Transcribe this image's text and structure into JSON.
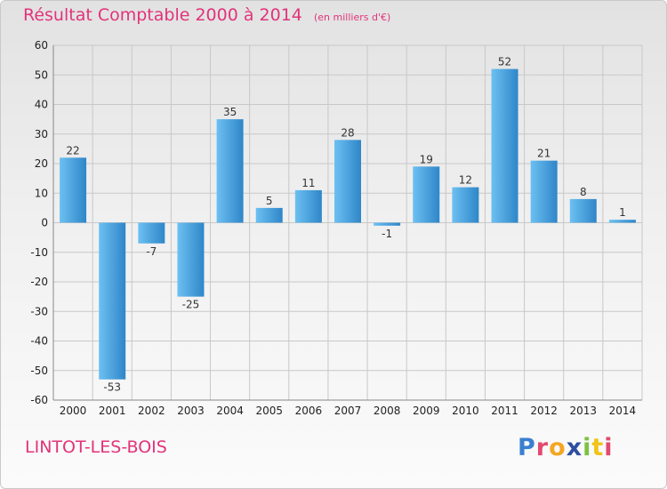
{
  "header": {
    "title": "Résultat Comptable 2000 à 2014",
    "subtitle": "(en milliers d'€)"
  },
  "footer": {
    "commune": "LINTOT-LES-BOIS",
    "brand_letters": [
      {
        "ch": "P",
        "color": "#3a7fd0"
      },
      {
        "ch": "r",
        "color": "#e24a6e"
      },
      {
        "ch": "o",
        "color": "#f5a623"
      },
      {
        "ch": "x",
        "color": "#2e4fa0"
      },
      {
        "ch": "i",
        "color": "#7cc242"
      },
      {
        "ch": "t",
        "color": "#f0c419"
      },
      {
        "ch": "i",
        "color": "#e24a6e"
      }
    ]
  },
  "colors": {
    "title": "#e2337a",
    "bar_light": "#5eb4ec",
    "bar_dark": "#2a7fc4",
    "grid": "#c8c8c8"
  },
  "chart_data": {
    "type": "bar",
    "categories": [
      "2000",
      "2001",
      "2002",
      "2003",
      "2004",
      "2005",
      "2006",
      "2007",
      "2008",
      "2009",
      "2010",
      "2011",
      "2012",
      "2013",
      "2014"
    ],
    "values": [
      22,
      -53,
      -7,
      -25,
      35,
      5,
      11,
      28,
      -1,
      19,
      12,
      52,
      21,
      8,
      1
    ],
    "ylim": [
      -60,
      60
    ],
    "yticks": [
      -60,
      -50,
      -40,
      -30,
      -20,
      -10,
      0,
      10,
      20,
      30,
      40,
      50,
      60
    ],
    "grid": true,
    "legend": "none"
  }
}
